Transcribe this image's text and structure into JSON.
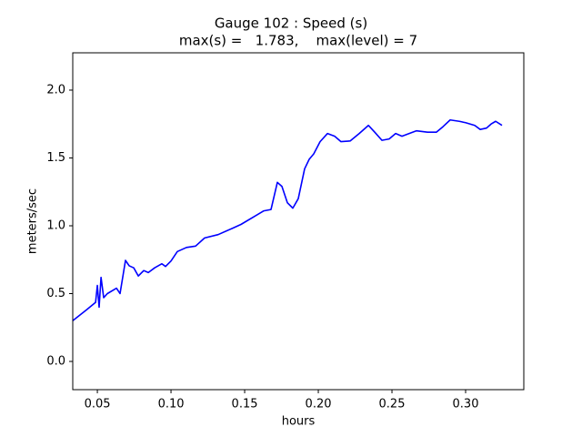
{
  "chart_data": {
    "type": "line",
    "title": "Gauge 102 : Speed (s)",
    "subtitle": "max(s) =   1.783,    max(level) = 7",
    "x_label": "hours",
    "y_label": "meters/sec",
    "xlim": [
      0.0333,
      0.3395
    ],
    "ylim": [
      -0.208,
      2.275
    ],
    "xticks": [
      0.05,
      {
        "value": 0.1,
        "label": "0.10"
      },
      0.15,
      {
        "value": 0.2,
        "label": "0.20"
      },
      0.25,
      {
        "value": 0.3,
        "label": "0.30"
      }
    ],
    "yticks": [
      {
        "value": 0,
        "label": "0.0"
      },
      0.5,
      {
        "value": 1,
        "label": "1.0"
      },
      1.5,
      {
        "value": 2,
        "label": "2.0"
      }
    ],
    "grid": false,
    "x": [
      0.0333,
      0.0426,
      0.0488,
      0.05,
      0.0512,
      0.0525,
      0.0543,
      0.0568,
      0.063,
      0.0654,
      0.0691,
      0.0716,
      0.0747,
      0.0778,
      0.0815,
      0.0846,
      0.0889,
      0.0938,
      0.0963,
      0.1,
      0.1043,
      0.1105,
      0.1167,
      0.1228,
      0.132,
      0.1414,
      0.1475,
      0.1568,
      0.163,
      0.1679,
      0.1722,
      0.1753,
      0.179,
      0.1827,
      0.1864,
      0.1907,
      0.1938,
      0.1969,
      0.2012,
      0.2062,
      0.2111,
      0.2154,
      0.2216,
      0.2278,
      0.234,
      0.2383,
      0.2432,
      0.2481,
      0.2525,
      0.2568,
      0.2617,
      0.2667,
      0.2741,
      0.2802,
      0.2846,
      0.2895,
      0.2957,
      0.3,
      0.3062,
      0.3099,
      0.3142,
      0.3173,
      0.3204,
      0.3247
    ],
    "series": [
      {
        "color": "#0000ff",
        "values": [
          0.3,
          0.38,
          0.435,
          0.56,
          0.4,
          0.62,
          0.47,
          0.5,
          0.54,
          0.5,
          0.745,
          0.705,
          0.69,
          0.63,
          0.67,
          0.655,
          0.69,
          0.72,
          0.7,
          0.74,
          0.81,
          0.84,
          0.85,
          0.91,
          0.935,
          0.98,
          1.01,
          1.07,
          1.11,
          1.12,
          1.32,
          1.29,
          1.17,
          1.13,
          1.2,
          1.42,
          1.49,
          1.53,
          1.62,
          1.68,
          1.66,
          1.62,
          1.625,
          1.68,
          1.74,
          1.69,
          1.63,
          1.64,
          1.68,
          1.66,
          1.68,
          1.7,
          1.69,
          1.69,
          1.73,
          1.78,
          1.77,
          1.76,
          1.74,
          1.71,
          1.72,
          1.75,
          1.77,
          1.74
        ]
      }
    ]
  }
}
